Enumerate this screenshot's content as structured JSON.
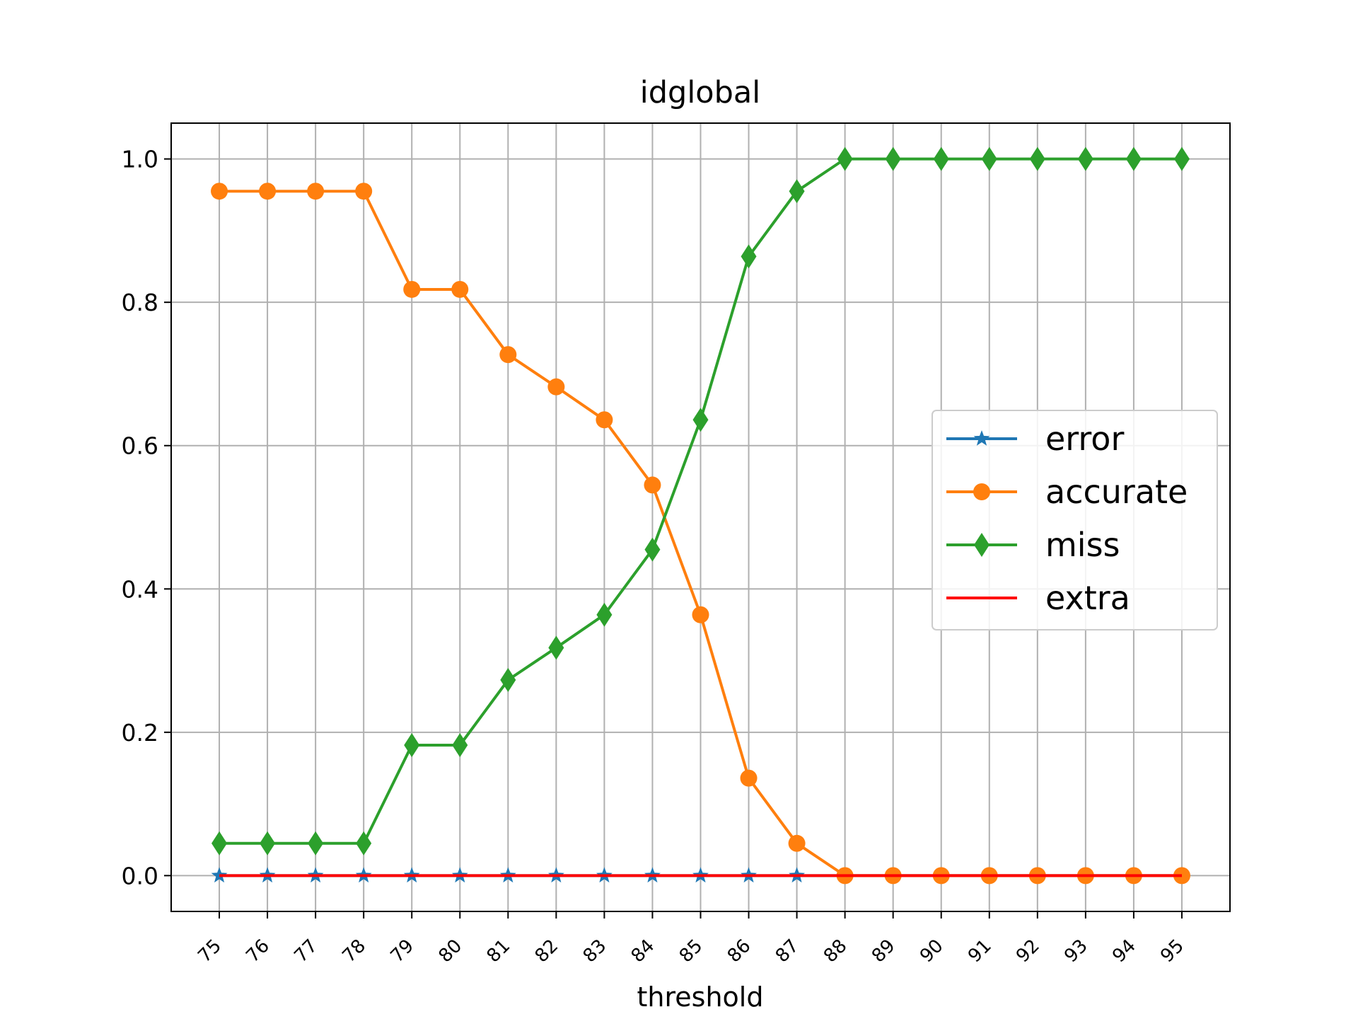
{
  "chart_data": {
    "type": "line",
    "title": "idglobal",
    "xlabel": "threshold",
    "ylabel": "",
    "x": [
      75,
      76,
      77,
      78,
      79,
      80,
      81,
      82,
      83,
      84,
      85,
      86,
      87,
      88,
      89,
      90,
      91,
      92,
      93,
      94,
      95
    ],
    "xtick_labels": [
      "75",
      "76",
      "77",
      "78",
      "79",
      "80",
      "81",
      "82",
      "83",
      "84",
      "85",
      "86",
      "87",
      "88",
      "89",
      "90",
      "91",
      "92",
      "93",
      "94",
      "95"
    ],
    "ylim": [
      -0.05,
      1.05
    ],
    "yticks": [
      0.0,
      0.2,
      0.4,
      0.6,
      0.8,
      1.0
    ],
    "ytick_labels": [
      "0.0",
      "0.2",
      "0.4",
      "0.6",
      "0.8",
      "1.0"
    ],
    "grid": true,
    "legend_position": "center-right",
    "series": [
      {
        "name": "error",
        "color": "#1f77b4",
        "marker": "star",
        "values": [
          0,
          0,
          0,
          0,
          0,
          0,
          0,
          0,
          0,
          0,
          0,
          0,
          0,
          0,
          0,
          0,
          0,
          0,
          0,
          0,
          0
        ]
      },
      {
        "name": "accurate",
        "color": "#ff7f0e",
        "marker": "circle",
        "values": [
          0.955,
          0.955,
          0.955,
          0.955,
          0.818,
          0.818,
          0.727,
          0.682,
          0.636,
          0.545,
          0.364,
          0.136,
          0.045,
          0.0,
          0.0,
          0.0,
          0.0,
          0.0,
          0.0,
          0.0,
          0.0
        ]
      },
      {
        "name": "miss",
        "color": "#2ca02c",
        "marker": "thin-diamond",
        "values": [
          0.045,
          0.045,
          0.045,
          0.045,
          0.182,
          0.182,
          0.273,
          0.318,
          0.364,
          0.455,
          0.636,
          0.864,
          0.955,
          1.0,
          1.0,
          1.0,
          1.0,
          1.0,
          1.0,
          1.0,
          1.0
        ]
      },
      {
        "name": "extra",
        "color": "#ff0000",
        "marker": "none",
        "values": [
          0,
          0,
          0,
          0,
          0,
          0,
          0,
          0,
          0,
          0,
          0,
          0,
          0,
          0,
          0,
          0,
          0,
          0,
          0,
          0,
          0
        ]
      }
    ]
  }
}
